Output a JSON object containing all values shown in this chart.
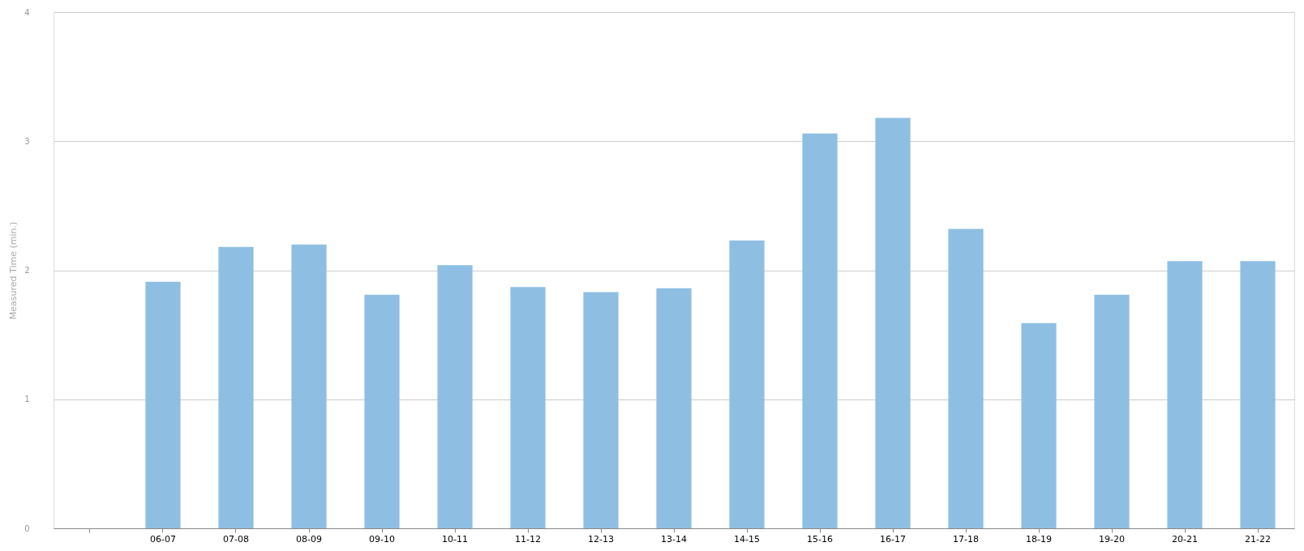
{
  "chart_data": {
    "type": "bar",
    "ylabel": "Measured Time (min.)",
    "categories": [
      null,
      "06-07",
      "07-08",
      "08-09",
      "09-10",
      "10-11",
      "11-12",
      "12-13",
      "13-14",
      "14-15",
      "15-16",
      "16-17",
      "17-18",
      "18-19",
      "19-20",
      "20-21",
      "21-22"
    ],
    "values": [
      null,
      1.91,
      2.18,
      2.2,
      1.81,
      2.04,
      1.87,
      1.83,
      1.86,
      2.23,
      3.06,
      3.18,
      2.32,
      1.59,
      1.81,
      2.07,
      2.07
    ],
    "color": "#8ebfe3",
    "ylim": [
      0,
      4
    ],
    "yticks": [
      0,
      1,
      2,
      3,
      4
    ],
    "grid": "y"
  }
}
